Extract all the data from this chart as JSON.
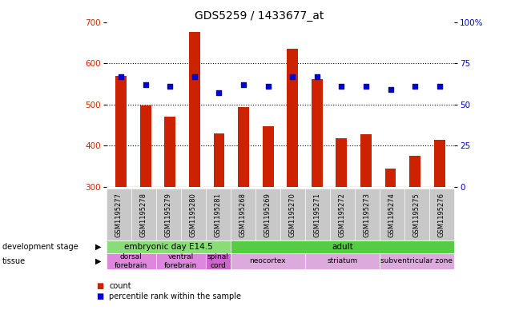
{
  "title": "GDS5259 / 1433677_at",
  "samples": [
    "GSM1195277",
    "GSM1195278",
    "GSM1195279",
    "GSM1195280",
    "GSM1195281",
    "GSM1195268",
    "GSM1195269",
    "GSM1195270",
    "GSM1195271",
    "GSM1195272",
    "GSM1195273",
    "GSM1195274",
    "GSM1195275",
    "GSM1195276"
  ],
  "counts": [
    570,
    497,
    470,
    675,
    430,
    493,
    447,
    636,
    562,
    418,
    427,
    345,
    375,
    415
  ],
  "percentiles": [
    67,
    62,
    61,
    67,
    57,
    62,
    61,
    67,
    67,
    61,
    61,
    59,
    61,
    61
  ],
  "ylim_left": [
    300,
    700
  ],
  "ylim_right": [
    0,
    100
  ],
  "yticks_left": [
    300,
    400,
    500,
    600,
    700
  ],
  "yticks_right": [
    0,
    25,
    50,
    75,
    100
  ],
  "bar_color": "#cc2200",
  "dot_color": "#0000cc",
  "dev_stage_groups": [
    {
      "label": "embryonic day E14.5",
      "start": 0,
      "end": 5,
      "color": "#88dd77"
    },
    {
      "label": "adult",
      "start": 5,
      "end": 14,
      "color": "#55cc44"
    }
  ],
  "tissue_groups": [
    {
      "label": "dorsal\nforebrain",
      "start": 0,
      "end": 2,
      "color": "#dd88dd"
    },
    {
      "label": "ventral\nforebrain",
      "start": 2,
      "end": 4,
      "color": "#dd88dd"
    },
    {
      "label": "spinal\ncord",
      "start": 4,
      "end": 5,
      "color": "#cc66cc"
    },
    {
      "label": "neocortex",
      "start": 5,
      "end": 8,
      "color": "#ddaadd"
    },
    {
      "label": "striatum",
      "start": 8,
      "end": 11,
      "color": "#ddaadd"
    },
    {
      "label": "subventricular zone",
      "start": 11,
      "end": 14,
      "color": "#ddaadd"
    }
  ]
}
